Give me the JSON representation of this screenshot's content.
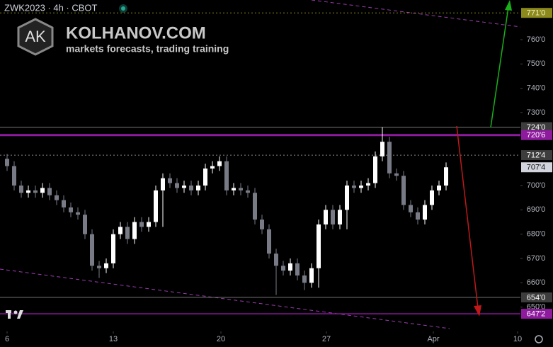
{
  "header": {
    "symbol": "ZWK2023 · 4h · CBOT",
    "logo": "AK",
    "brand": "KOLHANOV.COM",
    "tagline": "markets forecasts, trading training"
  },
  "chart_data": {
    "type": "candlestick",
    "x": [
      1,
      2,
      3,
      4,
      5,
      6,
      7,
      8,
      9,
      10,
      11,
      12,
      13,
      14,
      15,
      16,
      17,
      18,
      19,
      20,
      21,
      22,
      23,
      24,
      25,
      26,
      27,
      28,
      29,
      30,
      31,
      32,
      33,
      34,
      35,
      36,
      37,
      38,
      39,
      40,
      41,
      42,
      43,
      44,
      45,
      46,
      47,
      48,
      49,
      50,
      51,
      52,
      53,
      54,
      55,
      56,
      57,
      58,
      59,
      60,
      61,
      62,
      63
    ],
    "open": [
      711,
      708,
      700,
      697,
      698,
      697,
      699,
      696,
      694,
      691,
      689,
      688,
      680,
      667,
      666,
      668,
      680,
      683,
      678,
      685,
      683,
      685,
      698,
      703,
      701,
      699,
      700,
      698,
      700,
      707,
      708,
      710,
      698,
      699,
      698,
      697,
      686,
      682,
      672,
      667,
      665,
      668,
      663,
      660,
      666,
      684,
      690,
      684,
      690,
      700,
      699,
      700,
      701,
      712,
      718,
      705,
      704,
      692,
      689,
      686,
      692,
      698,
      700
    ],
    "high": [
      713,
      710,
      702,
      700,
      700,
      701,
      701,
      698,
      696,
      693,
      691,
      690,
      682,
      669,
      670,
      682,
      685,
      685,
      687,
      687,
      687,
      700,
      705,
      705,
      703,
      702,
      702,
      702,
      709,
      710,
      712,
      712,
      701,
      701,
      700,
      699,
      688,
      684,
      674,
      669,
      670,
      670,
      665,
      668,
      686,
      692,
      692,
      692,
      702,
      702,
      702,
      703,
      714,
      724,
      720,
      707,
      706,
      694,
      691,
      694,
      700,
      702,
      709.5
    ],
    "low": [
      706,
      698,
      695,
      695,
      695,
      695,
      694,
      692,
      689,
      687,
      686,
      678,
      665,
      662,
      664,
      666,
      678,
      676,
      676,
      681,
      681,
      683,
      683,
      699,
      697,
      697,
      696,
      696,
      698,
      705,
      706,
      696,
      696,
      696,
      695,
      684,
      680,
      670,
      655,
      663,
      663,
      661,
      657,
      658,
      658,
      682,
      682,
      682,
      682,
      697,
      697,
      698,
      699,
      710,
      703,
      702,
      690,
      687,
      684,
      684,
      690,
      696,
      698
    ],
    "close": [
      708,
      700,
      697,
      698,
      697,
      699,
      696,
      694,
      691,
      689,
      688,
      680,
      667,
      666,
      668,
      680,
      683,
      678,
      685,
      683,
      685,
      698,
      703,
      701,
      699,
      700,
      698,
      700,
      707,
      708,
      710,
      698,
      699,
      698,
      697,
      686,
      682,
      672,
      667,
      665,
      668,
      663,
      660,
      666,
      684,
      690,
      684,
      690,
      700,
      699,
      700,
      701,
      712,
      718,
      705,
      704,
      692,
      689,
      686,
      692,
      698,
      700,
      707.5
    ],
    "up_color": "#ffffff",
    "down_color": "#787b86",
    "xlim": [
      0,
      74
    ],
    "xticks": [
      {
        "value": 1,
        "label": "6"
      },
      {
        "value": 16,
        "label": "13"
      },
      {
        "value": 31.2,
        "label": "20"
      },
      {
        "value": 46.1,
        "label": "27"
      },
      {
        "value": 61.2,
        "label": "Apr"
      },
      {
        "value": 73.1,
        "label": "10"
      }
    ],
    "ylim": [
      640,
      776.3
    ],
    "yticks": [
      {
        "value": 650,
        "label": "650'0"
      },
      {
        "value": 660,
        "label": "660'0"
      },
      {
        "value": 670,
        "label": "670'0"
      },
      {
        "value": 680,
        "label": "680'0"
      },
      {
        "value": 690,
        "label": "690'0"
      },
      {
        "value": 700,
        "label": "700'0"
      },
      {
        "value": 730,
        "label": "730'0"
      },
      {
        "value": 740,
        "label": "740'0"
      },
      {
        "value": 750,
        "label": "750'0"
      },
      {
        "value": 760,
        "label": "760'0"
      }
    ],
    "levels": [
      {
        "value": 771,
        "label": "771'0",
        "color": "#8c8a1c",
        "text_color": "#f0f0c0",
        "style": "dotted"
      },
      {
        "value": 724,
        "label": "724'0",
        "color": "#3d3d3d",
        "text_color": "#ffffff",
        "style": "solid"
      },
      {
        "value": 720.75,
        "label": "720'6",
        "color": "#8e1a9e",
        "text_color": "#ffffff",
        "style": "thick"
      },
      {
        "value": 712.5,
        "label": "712'4",
        "color": "#3d3d3d",
        "text_color": "#ffffff",
        "style": "dotted"
      },
      {
        "value": 707.5,
        "label": "707'4",
        "color": "#d1d4dc",
        "text_color": "#131313",
        "style": "none"
      },
      {
        "value": 654,
        "label": "654'0",
        "color": "#3d3d3d",
        "text_color": "#ffffff",
        "style": "solid"
      },
      {
        "value": 647.25,
        "label": "647'2",
        "color": "#8e1a9e",
        "text_color": "#ffffff",
        "style": "purple"
      }
    ]
  }
}
